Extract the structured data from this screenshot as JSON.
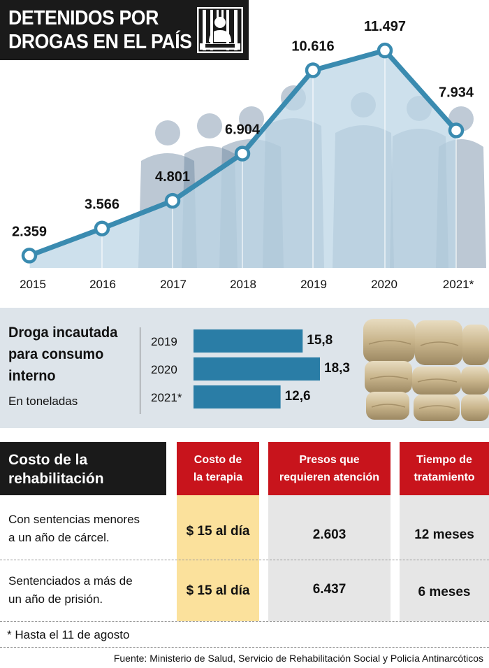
{
  "title": {
    "line1": "DETENIDOS POR",
    "line2": "DROGAS EN EL PAÍS"
  },
  "chart_data": [
    {
      "type": "line",
      "title": "DETENIDOS POR DROGAS EN EL PAÍS",
      "categories": [
        "2015",
        "2016",
        "2017",
        "2018",
        "2019",
        "2020",
        "2021*"
      ],
      "values": [
        2359,
        3566,
        4801,
        6904,
        10616,
        11497,
        7934
      ],
      "labels": [
        "2.359",
        "3.566",
        "4.801",
        "6.904",
        "10.616",
        "11.497",
        "7.934"
      ],
      "ylim": [
        1500,
        12500
      ],
      "grid": false,
      "colors": {
        "line": "#3a8bb0",
        "area": "#bcd6e6",
        "marker_fill": "#ffffff"
      }
    },
    {
      "type": "bar",
      "orientation": "horizontal",
      "title": "Droga incautada para consumo interno",
      "subtitle": "En toneladas",
      "categories": [
        "2019",
        "2020",
        "2021*"
      ],
      "values": [
        15.8,
        18.3,
        12.6
      ],
      "labels": [
        "15,8",
        "18,3",
        "12,6"
      ],
      "xlim": [
        0,
        18.3
      ],
      "colors": {
        "bar": "#2a7da6"
      }
    }
  ],
  "bar_section": {
    "title_lines": [
      "Droga incautada",
      "para consumo",
      "interno"
    ],
    "subtitle": "En toneladas"
  },
  "table": {
    "title_lines": [
      "Costo de la",
      "rehabilitación"
    ],
    "headers": [
      [
        "Costo de",
        "la terapia"
      ],
      [
        "Presos que",
        "requieren atención"
      ],
      [
        "Tiempo de",
        "tratamiento"
      ]
    ],
    "rows": [
      {
        "label_lines": [
          "Con sentencias menores",
          "a un año de cárcel."
        ],
        "cost": "$ 15 al día",
        "inmates": "2.603",
        "time": "12 meses"
      },
      {
        "label_lines": [
          "Sentenciados a más de",
          "un año de prisión."
        ],
        "cost": "$ 15 al día",
        "inmates": "6.437",
        "time": "6 meses"
      }
    ],
    "colors": {
      "header_red": "#c8141c",
      "cost_bg": "#fbe19c",
      "grey_bg": "#e6e6e6"
    }
  },
  "footnote": "*  Hasta el 11 de agosto",
  "source": "Fuente: Ministerio de Salud, Servicio de Rehabilitación Social y Policía Antinarcóticos",
  "icons": {
    "title_icon": "jail-bars-icon",
    "bar_image": "drug-bales-icon"
  }
}
